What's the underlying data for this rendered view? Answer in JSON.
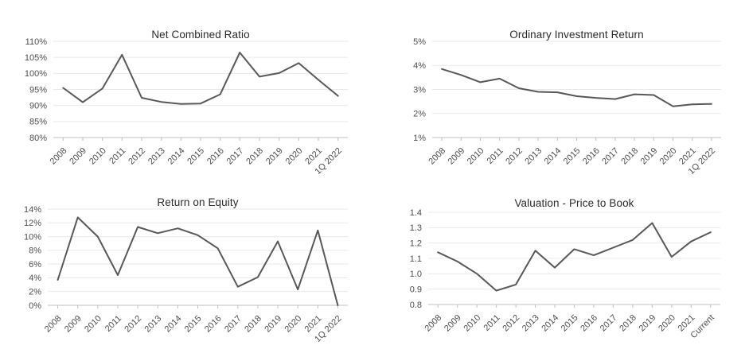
{
  "page": {
    "background": "#ffffff",
    "text_color": "#4d4d4d",
    "title_color": "#2a2a2a",
    "grid_color": "#e9e9e9",
    "axis_color": "#c0c0c0",
    "line_color": "#56585c"
  },
  "chart_data": [
    {
      "type": "line",
      "title": "Net Combined Ratio",
      "categories": [
        "2008",
        "2009",
        "2010",
        "2011",
        "2012",
        "2013",
        "2014",
        "2015",
        "2016",
        "2017",
        "2018",
        "2019",
        "2020",
        "2021",
        "1Q 2022"
      ],
      "values": [
        95.5,
        91.0,
        95.3,
        105.8,
        92.4,
        91.1,
        90.5,
        90.6,
        93.5,
        106.5,
        99.0,
        100.1,
        103.2,
        98.0,
        93.0
      ],
      "ytick_labels": [
        "110%",
        "105%",
        "100%",
        "95%",
        "90%",
        "85%",
        "80%"
      ],
      "ylim": [
        80,
        110
      ],
      "xlabel": "",
      "ylabel": "",
      "grid": "horizontal",
      "legend": "none"
    },
    {
      "type": "line",
      "title": "Ordinary Investment Return",
      "categories": [
        "2008",
        "2009",
        "2010",
        "2011",
        "2012",
        "2013",
        "2014",
        "2015",
        "2016",
        "2017",
        "2018",
        "2019",
        "2020",
        "2021",
        "1Q 2022"
      ],
      "values": [
        3.85,
        3.6,
        3.3,
        3.45,
        3.05,
        2.9,
        2.88,
        2.72,
        2.65,
        2.6,
        2.8,
        2.77,
        2.3,
        2.38,
        2.4
      ],
      "ytick_labels": [
        "5%",
        "4%",
        "3%",
        "2%",
        "1%"
      ],
      "ylim": [
        1,
        5
      ],
      "xlabel": "",
      "ylabel": "",
      "grid": "horizontal",
      "legend": "none"
    },
    {
      "type": "line",
      "title": "Return on Equity",
      "categories": [
        "2008",
        "2009",
        "2010",
        "2011",
        "2012",
        "2013",
        "2014",
        "2015",
        "2016",
        "2017",
        "2018",
        "2019",
        "2020",
        "2021",
        "1Q 2022"
      ],
      "values": [
        3.7,
        12.8,
        10.0,
        4.4,
        11.4,
        10.5,
        11.2,
        10.2,
        8.3,
        2.7,
        4.1,
        9.3,
        2.3,
        10.9,
        0.0
      ],
      "ytick_labels": [
        "14%",
        "12%",
        "10%",
        "8%",
        "6%",
        "4%",
        "2%",
        "0%"
      ],
      "ylim": [
        0,
        14
      ],
      "xlabel": "",
      "ylabel": "",
      "grid": "horizontal",
      "legend": "none"
    },
    {
      "type": "line",
      "title": "Valuation - Price to Book",
      "categories": [
        "2008",
        "2009",
        "2010",
        "2011",
        "2012",
        "2013",
        "2014",
        "2015",
        "2016",
        "2017",
        "2018",
        "2019",
        "2020",
        "2021",
        "Current"
      ],
      "values": [
        1.14,
        1.08,
        1.0,
        0.89,
        0.93,
        1.15,
        1.04,
        1.16,
        1.12,
        1.17,
        1.22,
        1.33,
        1.11,
        1.21,
        1.27
      ],
      "ytick_labels": [
        "1.4",
        "1.3",
        "1.2",
        "1.1",
        "1.0",
        "0.9",
        "0.8"
      ],
      "ylim": [
        0.8,
        1.4
      ],
      "xlabel": "",
      "ylabel": "",
      "grid": "horizontal",
      "legend": "none"
    }
  ]
}
